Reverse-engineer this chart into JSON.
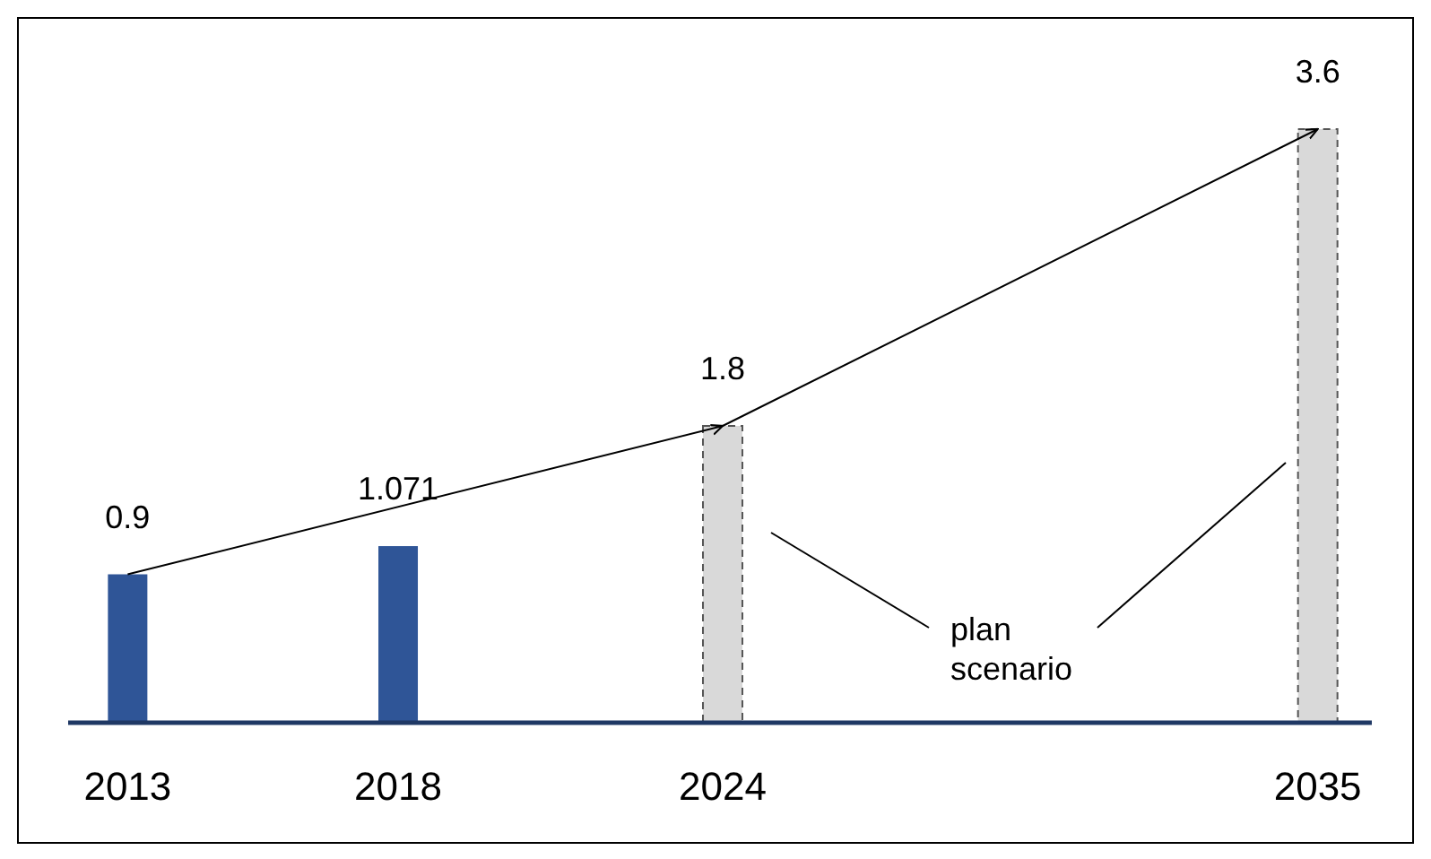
{
  "chart_data": {
    "type": "bar",
    "x": [
      2013,
      2018,
      2024,
      2035
    ],
    "xlim": [
      2011.9,
      2036
    ],
    "xticks": [
      2013,
      2018,
      2024,
      2035
    ],
    "tick_labels": "x",
    "series": [
      {
        "color": "#2f5597",
        "values": [
          0.9,
          1.071,
          null,
          null
        ],
        "value_labels": [
          "0.9",
          "1.071",
          null,
          null
        ]
      },
      {
        "color": "#d9d9d9",
        "line_style": "dashed",
        "values": [
          null,
          null,
          1.8,
          3.6
        ],
        "value_labels": [
          null,
          null,
          "1.8",
          "3.6"
        ]
      },
      {
        "type": "line",
        "color": "#000000",
        "x": [
          2013,
          2024,
          2035
        ],
        "values": [
          0.9,
          1.8,
          3.6
        ]
      }
    ],
    "annotations": [
      "plan\nscenario"
    ]
  }
}
